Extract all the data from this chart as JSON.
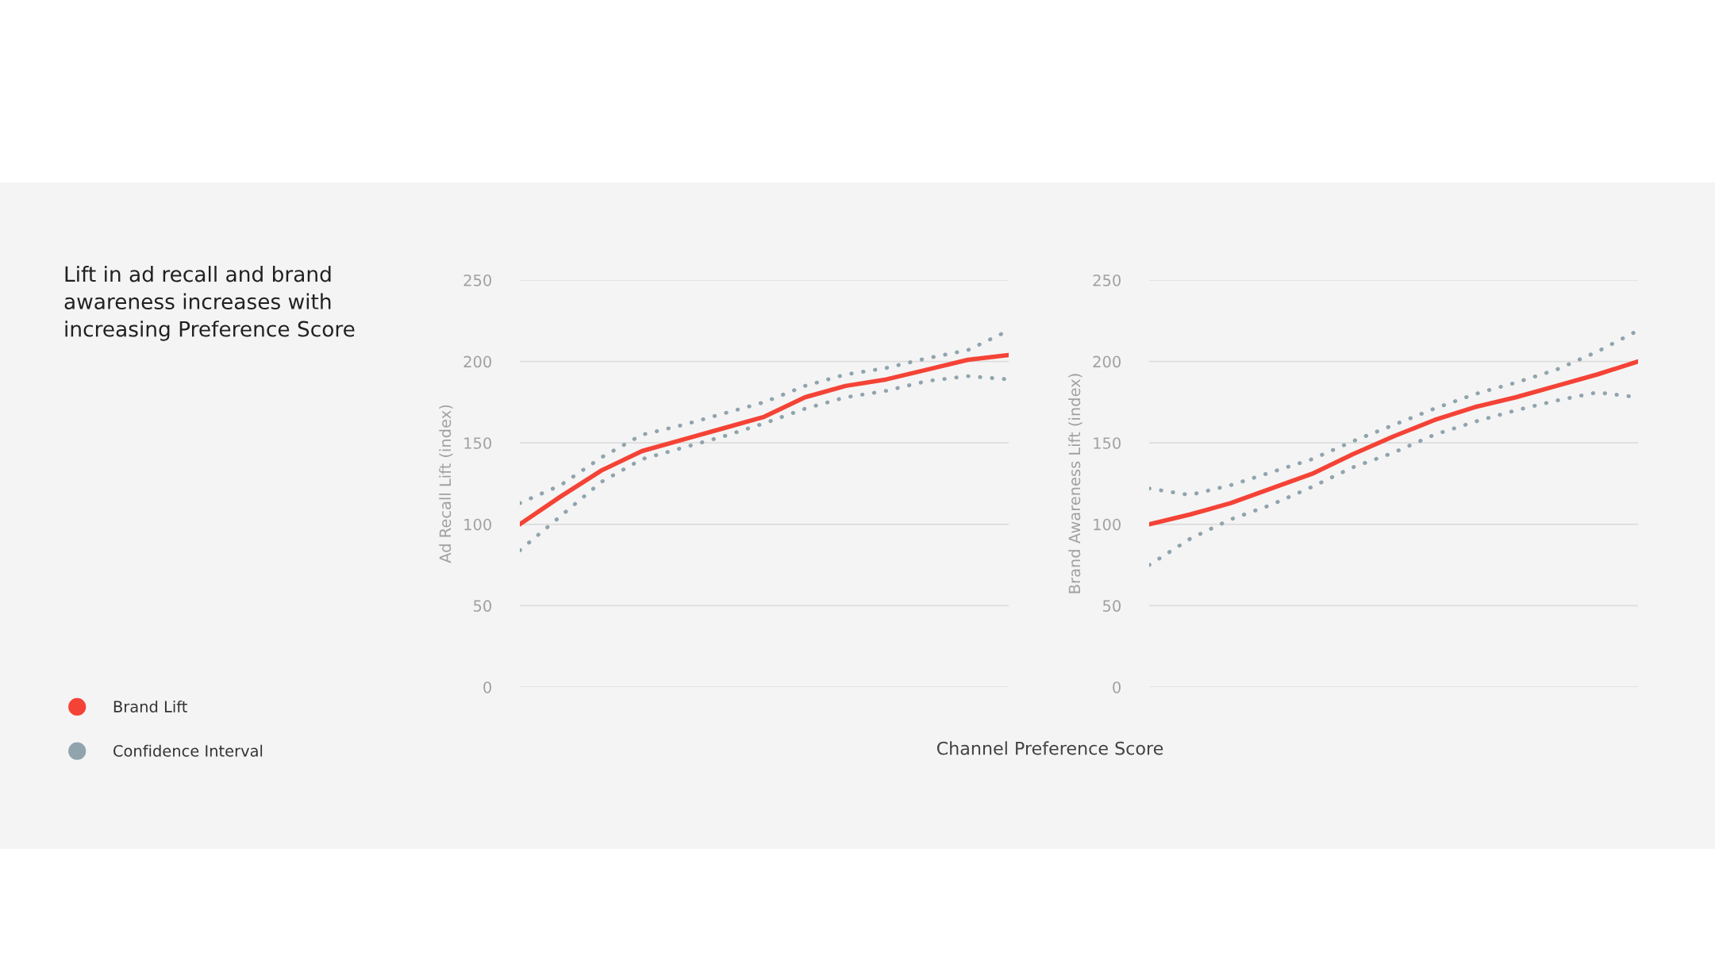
{
  "chart_data": [
    {
      "type": "line",
      "title": "Lift in ad recall and brand\nawareness increases with\nincreasing Preference Score",
      "xlabel": "Channel Preference Score",
      "ylabel": "Ad Recall Lift (index)",
      "categories": [
        null,
        null,
        null,
        null,
        null,
        null,
        null,
        null,
        null,
        null,
        null,
        null,
        null
      ],
      "series": [
        {
          "name": "Brand Lift",
          "color": "#f44336",
          "values": [
            100,
            117,
            133,
            145,
            152,
            159,
            166,
            178,
            185,
            189,
            195,
            201,
            204
          ]
        },
        {
          "name": "Confidence Interval",
          "color": "#90a4ae",
          "line_style": "dotted",
          "values": [
            113,
            124,
            141,
            155,
            161,
            168,
            175,
            185,
            192,
            196,
            202,
            207,
            219
          ]
        },
        {
          "color": "#90a4ae",
          "line_style": "dotted",
          "values": [
            84,
            105,
            126,
            140,
            147,
            154,
            162,
            171,
            178,
            182,
            188,
            191,
            189
          ]
        }
      ],
      "ylim": [
        0,
        250
      ],
      "yticks": [
        0,
        50,
        100,
        150,
        200,
        250
      ],
      "grid": "y",
      "legend": "left",
      "tick_labels": "y"
    },
    {
      "type": "line",
      "ylabel": "Brand Awareness Lift (index)",
      "categories": [
        null,
        null,
        null,
        null,
        null,
        null,
        null,
        null,
        null,
        null,
        null,
        null,
        null
      ],
      "series": [
        {
          "color": "#f44336",
          "values": [
            100,
            106,
            113,
            122,
            131,
            143,
            154,
            164,
            172,
            178,
            185,
            192,
            200
          ]
        },
        {
          "color": "#90a4ae",
          "line_style": "dotted",
          "values": [
            122,
            118,
            124,
            132,
            140,
            151,
            161,
            171,
            180,
            187,
            195,
            206,
            219
          ]
        },
        {
          "color": "#90a4ae",
          "line_style": "dotted",
          "values": [
            75,
            91,
            103,
            112,
            123,
            135,
            144,
            155,
            163,
            170,
            176,
            181,
            178
          ]
        }
      ],
      "ylim": [
        0,
        250
      ],
      "yticks": [
        0,
        50,
        100,
        150,
        200,
        250
      ],
      "grid": "y",
      "tick_labels": "y"
    }
  ]
}
